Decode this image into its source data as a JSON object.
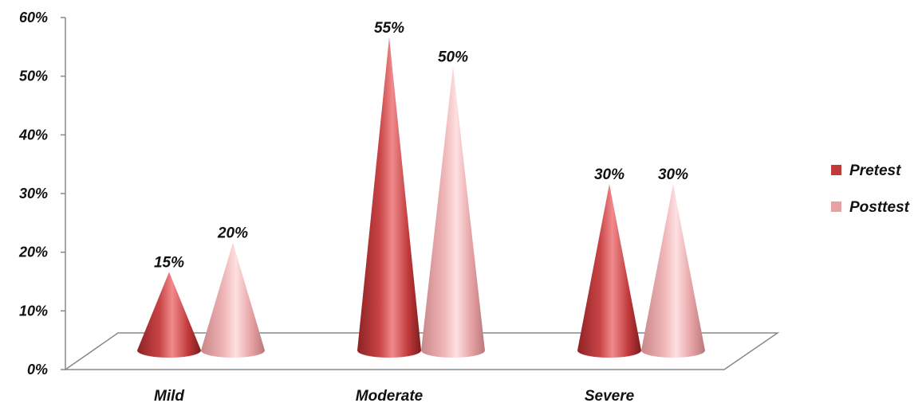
{
  "chart_data": {
    "type": "bar",
    "style": "3d-cone",
    "categories": [
      "Mild",
      "Moderate",
      "Severe"
    ],
    "series": [
      {
        "name": "Pretest",
        "values": [
          15,
          55,
          30
        ],
        "labels": [
          "15%",
          "55%",
          "30%"
        ],
        "color": "#c0393b"
      },
      {
        "name": "Posttest",
        "values": [
          20,
          50,
          30
        ],
        "labels": [
          "20%",
          "50%",
          "30%"
        ],
        "color": "#e8a1a3"
      }
    ],
    "yticks": [
      0,
      10,
      20,
      30,
      40,
      50,
      60
    ],
    "ytick_labels": [
      "0%",
      "10%",
      "20%",
      "30%",
      "40%",
      "50%",
      "60%"
    ],
    "ylim": [
      0,
      60
    ],
    "title": "",
    "xlabel": "",
    "ylabel": "",
    "grid": false,
    "legend_position": "right"
  }
}
